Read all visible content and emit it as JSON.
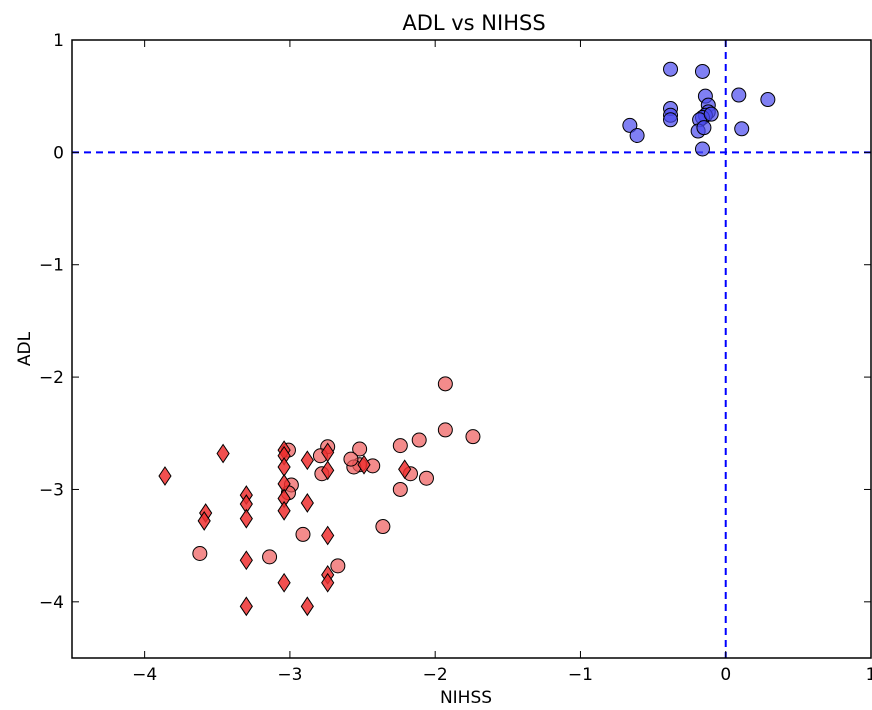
{
  "chart_data": {
    "type": "scatter",
    "title": "ADL vs NIHSS",
    "xlabel": "NIHSS",
    "ylabel": "ADL",
    "xlim": [
      -4.5,
      1.0
    ],
    "ylim": [
      -4.5,
      1.0
    ],
    "x_ticks": [
      -4,
      -3,
      -2,
      -1,
      0,
      1
    ],
    "x_tick_labels": [
      "−4",
      "−3",
      "−2",
      "−1",
      "0",
      "1"
    ],
    "y_ticks": [
      1,
      0,
      -1,
      -2,
      -3,
      -4
    ],
    "y_tick_labels": [
      "1",
      "0",
      "−1",
      "−2",
      "−3",
      "−4"
    ],
    "grid": false,
    "reference_lines": [
      {
        "axis": "x",
        "value": 0,
        "color": "#0000ff",
        "style": "dashed"
      },
      {
        "axis": "y",
        "value": 0,
        "color": "#0000ff",
        "style": "dashed"
      }
    ],
    "series": [
      {
        "marker": "circle",
        "color": "#4a4aee",
        "points": [
          [
            -0.38,
            0.74
          ],
          [
            -0.16,
            0.72
          ],
          [
            -0.14,
            0.5
          ],
          [
            -0.12,
            0.42
          ],
          [
            -0.12,
            0.36
          ],
          [
            -0.14,
            0.33
          ],
          [
            -0.16,
            0.31
          ],
          [
            -0.18,
            0.29
          ],
          [
            -0.1,
            0.34
          ],
          [
            -0.38,
            0.39
          ],
          [
            -0.38,
            0.33
          ],
          [
            -0.38,
            0.29
          ],
          [
            -0.66,
            0.24
          ],
          [
            -0.61,
            0.15
          ],
          [
            -0.19,
            0.19
          ],
          [
            -0.15,
            0.22
          ],
          [
            -0.16,
            0.03
          ],
          [
            0.09,
            0.51
          ],
          [
            0.29,
            0.47
          ],
          [
            0.11,
            0.21
          ]
        ]
      },
      {
        "marker": "circle",
        "color": "#ee5a5a",
        "points": [
          [
            -1.93,
            -2.06
          ],
          [
            -1.93,
            -2.47
          ],
          [
            -1.74,
            -2.53
          ],
          [
            -2.11,
            -2.56
          ],
          [
            -2.24,
            -2.61
          ],
          [
            -2.06,
            -2.9
          ],
          [
            -2.17,
            -2.86
          ],
          [
            -2.24,
            -3.0
          ],
          [
            -2.36,
            -3.33
          ],
          [
            -2.43,
            -2.79
          ],
          [
            -2.52,
            -2.64
          ],
          [
            -2.52,
            -2.78
          ],
          [
            -2.56,
            -2.8
          ],
          [
            -2.58,
            -2.73
          ],
          [
            -2.67,
            -3.68
          ],
          [
            -2.74,
            -2.62
          ],
          [
            -2.78,
            -2.86
          ],
          [
            -2.79,
            -2.7
          ],
          [
            -2.99,
            -2.96
          ],
          [
            -3.01,
            -2.65
          ],
          [
            -3.01,
            -3.03
          ],
          [
            -2.91,
            -3.4
          ],
          [
            -3.14,
            -3.6
          ],
          [
            -3.62,
            -3.57
          ]
        ]
      },
      {
        "marker": "diamond",
        "color": "#ee3030",
        "points": [
          [
            -3.86,
            -2.88
          ],
          [
            -3.58,
            -3.21
          ],
          [
            -3.59,
            -3.28
          ],
          [
            -3.46,
            -2.68
          ],
          [
            -3.3,
            -3.05
          ],
          [
            -3.3,
            -3.13
          ],
          [
            -3.3,
            -3.26
          ],
          [
            -3.3,
            -3.63
          ],
          [
            -3.3,
            -4.04
          ],
          [
            -3.04,
            -2.65
          ],
          [
            -3.04,
            -2.7
          ],
          [
            -3.04,
            -2.8
          ],
          [
            -3.04,
            -2.95
          ],
          [
            -3.04,
            -3.08
          ],
          [
            -3.04,
            -3.19
          ],
          [
            -3.04,
            -3.83
          ],
          [
            -2.88,
            -2.74
          ],
          [
            -2.88,
            -3.12
          ],
          [
            -2.88,
            -4.04
          ],
          [
            -2.74,
            -2.67
          ],
          [
            -2.74,
            -2.83
          ],
          [
            -2.74,
            -3.41
          ],
          [
            -2.74,
            -3.76
          ],
          [
            -2.74,
            -3.83
          ],
          [
            -2.49,
            -2.78
          ],
          [
            -2.21,
            -2.82
          ]
        ]
      }
    ]
  }
}
